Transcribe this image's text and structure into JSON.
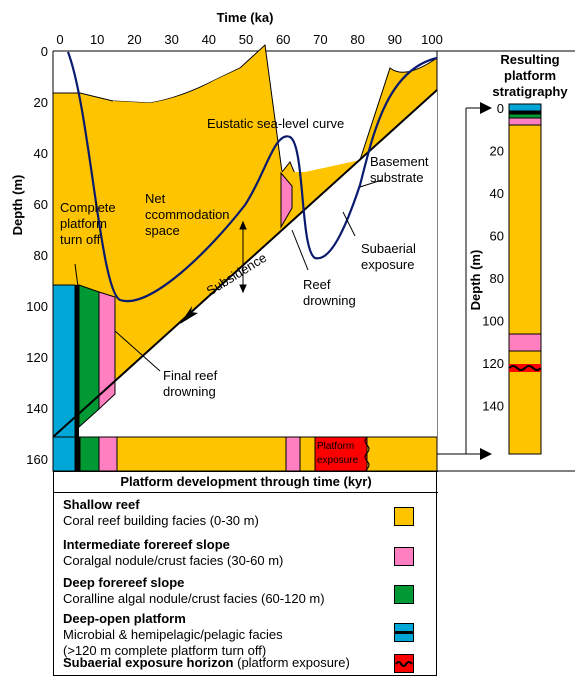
{
  "axes": {
    "time_label": "Time (ka)",
    "depth_label": "Depth (m)",
    "time_ticks": [
      "0",
      "10",
      "20",
      "30",
      "40",
      "50",
      "60",
      "70",
      "80",
      "90",
      "100"
    ],
    "depth_ticks": [
      "0",
      "20",
      "40",
      "60",
      "80",
      "100",
      "120",
      "140",
      "160"
    ]
  },
  "annotations": {
    "eustatic": "Eustatic sea-level curve",
    "basement_1": "Basement",
    "basement_2": "substrate",
    "complete_1": "Complete",
    "complete_2": "platform",
    "complete_3": "turn off",
    "net_1": "Net",
    "net_2": "ccommodation",
    "net_3": "space",
    "subsidence": "Subsidence",
    "subaerial_1": "Subaerial",
    "subaerial_2": "exposure",
    "reef_drown_1": "Reef",
    "reef_drown_2": "drowning",
    "final_1": "Final reef",
    "final_2": "drowning",
    "platform_exposure_1": "Platform",
    "platform_exposure_2": "exposure"
  },
  "column": {
    "title_1": "Resulting",
    "title_2": "platform",
    "title_3": "stratigraphy",
    "depth_label": "Depth (m)",
    "ticks": [
      "0",
      "20",
      "40",
      "60",
      "80",
      "100",
      "120",
      "140"
    ]
  },
  "legend": {
    "title": "Platform development through time (kyr)",
    "items": [
      {
        "heading": "Shallow reef",
        "heading_suffix": "",
        "text": "Coral reef building facies (0-30 m)",
        "color": "#FFC400"
      },
      {
        "heading": "Intermediate forereef slope",
        "heading_suffix": "",
        "text": "Coralgal nodule/crust facies (30-60 m)",
        "color": "#FF7FC0"
      },
      {
        "heading": "Deep forereef slope",
        "heading_suffix": "",
        "text": "Coralline algal nodule/crust facies (60-120 m)",
        "color": "#009933"
      },
      {
        "heading": "Deep-open platform",
        "heading_suffix": "",
        "text": "Microbial & hemipelagic/pelagic facies",
        "text2": "(>120 m complete platform turn off)",
        "color": "#00A6D6"
      },
      {
        "heading": "Subaerial exposure horizon",
        "heading_suffix": " (platform exposure)",
        "text": "",
        "color": "#FF0000"
      }
    ]
  },
  "colors": {
    "shallow": "#FFC400",
    "intermediate": "#FF7FC0",
    "deep": "#009933",
    "open": "#00A6D6",
    "exposure": "#FF0000",
    "sealevel": "#0A1A6E"
  }
}
